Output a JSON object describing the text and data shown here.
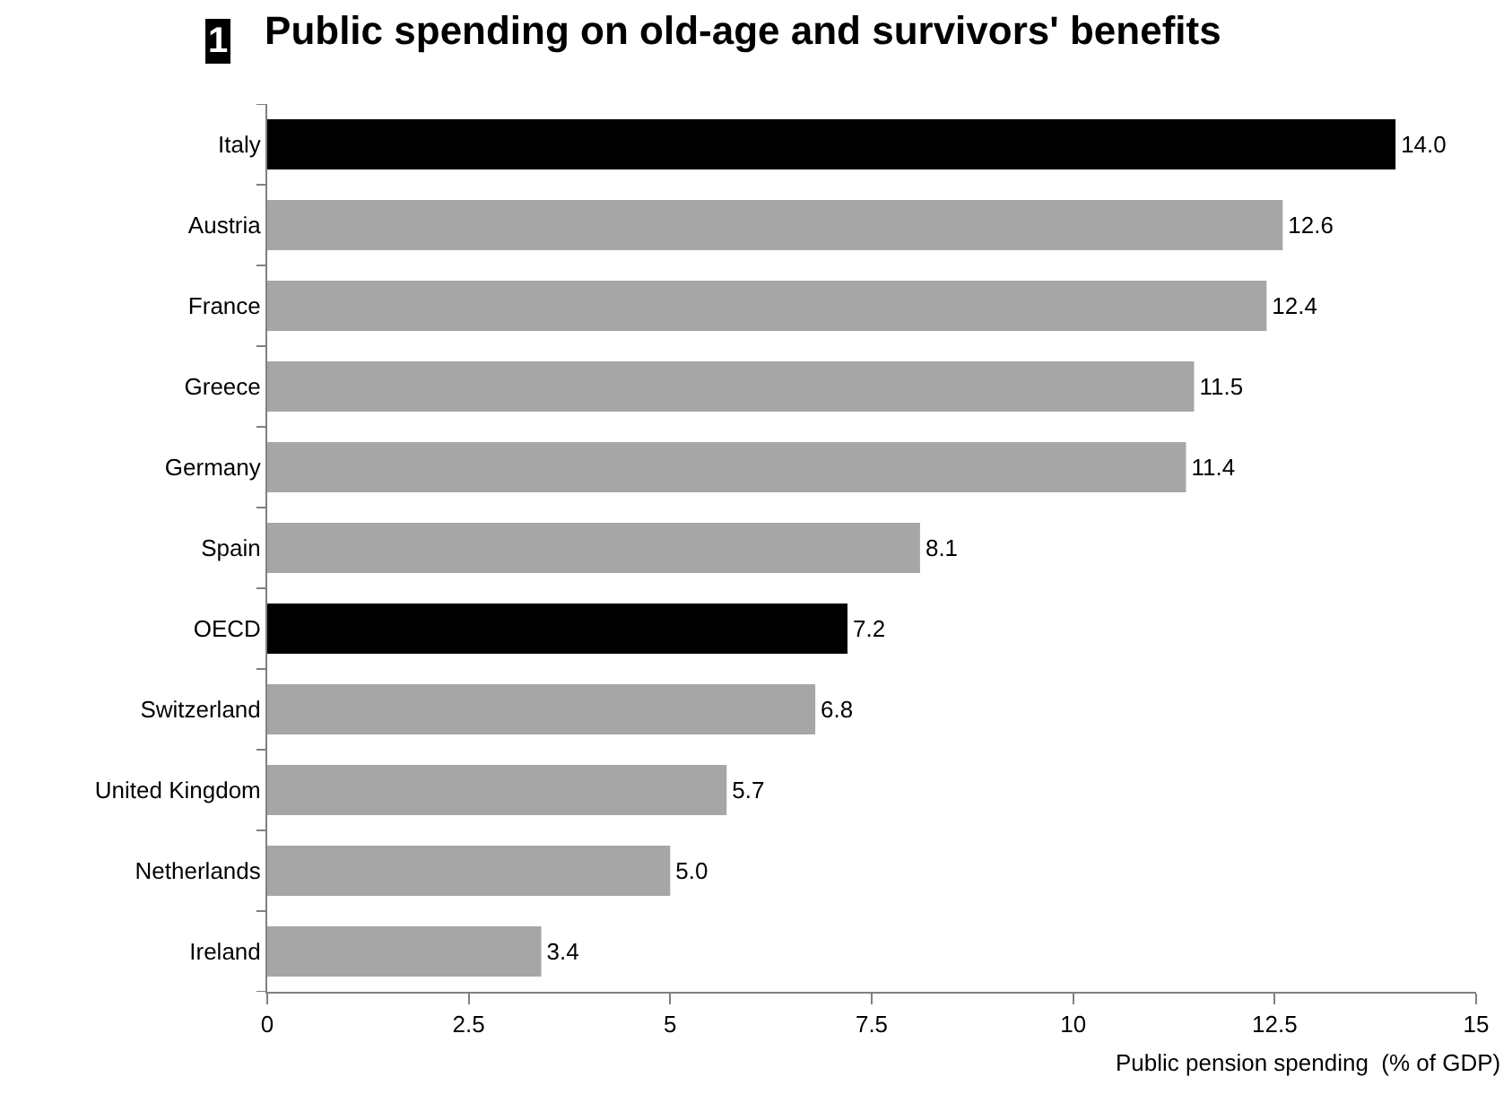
{
  "chart_data": {
    "type": "bar",
    "orientation": "horizontal",
    "title": "Public spending on old-age and survivors' benefits",
    "annotations": [
      "1"
    ],
    "xlabel": "Public pension spending  (% of GDP)",
    "categories": [
      "Italy",
      "Austria",
      "France",
      "Greece",
      "Germany",
      "Spain",
      "OECD",
      "Switzerland",
      "United Kingdom",
      "Netherlands",
      "Ireland"
    ],
    "values": [
      14.0,
      12.6,
      12.4,
      11.5,
      11.4,
      8.1,
      7.2,
      6.8,
      5.7,
      5.0,
      3.4
    ],
    "colors": [
      "#000000",
      "#a6a6a6",
      "#a6a6a6",
      "#a6a6a6",
      "#a6a6a6",
      "#a6a6a6",
      "#000000",
      "#a6a6a6",
      "#a6a6a6",
      "#a6a6a6",
      "#a6a6a6"
    ],
    "value_labels": [
      "14.0",
      "12.6",
      "12.4",
      "11.5",
      "11.4",
      "8.1",
      "7.2",
      "6.8",
      "5.7",
      "5.0",
      "3.4"
    ],
    "xlim": [
      0,
      15
    ],
    "xticks": [
      0,
      2.5,
      5,
      7.5,
      10,
      12.5,
      15
    ]
  }
}
